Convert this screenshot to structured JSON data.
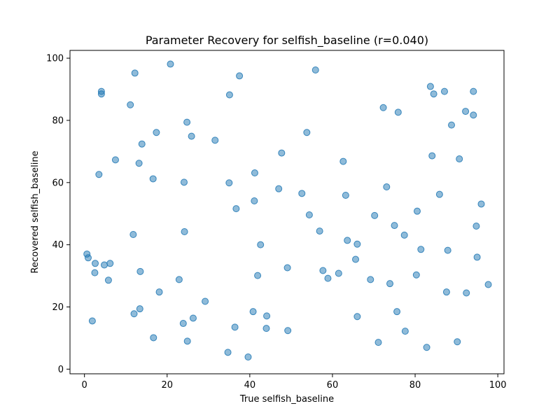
{
  "chart_data": {
    "type": "scatter",
    "title": "Parameter Recovery for selfish_baseline (r=0.040)",
    "xlabel": "True selfish_baseline",
    "ylabel": "Recovered selfish_baseline",
    "xlim": [
      -3.5,
      101.5
    ],
    "ylim": [
      -1.5,
      102.5
    ],
    "xticks": [
      0,
      20,
      40,
      60,
      80,
      100
    ],
    "yticks": [
      0,
      20,
      40,
      60,
      80,
      100
    ],
    "grid": false,
    "point_color": "#1f77b4",
    "point_alpha": 0.5,
    "points": [
      [
        0.6,
        37.0
      ],
      [
        0.9,
        35.8
      ],
      [
        1.9,
        15.5
      ],
      [
        2.5,
        31.0
      ],
      [
        2.6,
        34.0
      ],
      [
        3.5,
        62.6
      ],
      [
        4.1,
        89.3
      ],
      [
        4.1,
        88.5
      ],
      [
        4.8,
        33.5
      ],
      [
        5.8,
        28.6
      ],
      [
        6.2,
        34.0
      ],
      [
        7.5,
        67.3
      ],
      [
        11.1,
        85.0
      ],
      [
        11.8,
        43.3
      ],
      [
        12.2,
        95.2
      ],
      [
        12.0,
        17.8
      ],
      [
        13.2,
        66.2
      ],
      [
        13.4,
        19.4
      ],
      [
        13.5,
        31.4
      ],
      [
        13.9,
        72.4
      ],
      [
        16.6,
        61.2
      ],
      [
        16.7,
        10.1
      ],
      [
        17.4,
        76.1
      ],
      [
        18.1,
        24.8
      ],
      [
        20.8,
        98.1
      ],
      [
        22.9,
        28.8
      ],
      [
        23.9,
        14.7
      ],
      [
        24.1,
        60.1
      ],
      [
        24.2,
        44.2
      ],
      [
        24.8,
        79.4
      ],
      [
        24.9,
        9.0
      ],
      [
        25.9,
        74.9
      ],
      [
        26.3,
        16.4
      ],
      [
        29.2,
        21.8
      ],
      [
        31.6,
        73.6
      ],
      [
        34.7,
        5.4
      ],
      [
        35.0,
        59.9
      ],
      [
        35.1,
        88.2
      ],
      [
        36.4,
        13.5
      ],
      [
        36.7,
        51.6
      ],
      [
        37.5,
        94.3
      ],
      [
        39.6,
        3.9
      ],
      [
        40.8,
        18.5
      ],
      [
        41.1,
        54.1
      ],
      [
        41.2,
        63.1
      ],
      [
        41.9,
        30.1
      ],
      [
        42.6,
        40.0
      ],
      [
        44.0,
        13.1
      ],
      [
        44.1,
        17.1
      ],
      [
        47.0,
        58.0
      ],
      [
        47.7,
        69.5
      ],
      [
        49.1,
        32.6
      ],
      [
        49.2,
        12.4
      ],
      [
        52.6,
        56.5
      ],
      [
        53.8,
        76.1
      ],
      [
        54.4,
        49.6
      ],
      [
        55.9,
        96.2
      ],
      [
        56.9,
        44.4
      ],
      [
        57.7,
        31.7
      ],
      [
        58.9,
        29.2
      ],
      [
        61.5,
        30.8
      ],
      [
        62.6,
        66.8
      ],
      [
        63.2,
        55.9
      ],
      [
        63.6,
        41.4
      ],
      [
        65.6,
        35.3
      ],
      [
        66.0,
        40.2
      ],
      [
        66.0,
        16.9
      ],
      [
        69.2,
        28.8
      ],
      [
        70.2,
        49.4
      ],
      [
        71.1,
        8.6
      ],
      [
        72.3,
        84.1
      ],
      [
        73.1,
        58.6
      ],
      [
        73.9,
        27.5
      ],
      [
        75.0,
        46.2
      ],
      [
        75.6,
        18.5
      ],
      [
        75.9,
        82.6
      ],
      [
        77.4,
        43.1
      ],
      [
        77.6,
        12.2
      ],
      [
        80.3,
        30.3
      ],
      [
        80.5,
        50.8
      ],
      [
        81.4,
        38.5
      ],
      [
        82.8,
        7.0
      ],
      [
        83.7,
        90.9
      ],
      [
        84.1,
        68.6
      ],
      [
        84.5,
        88.5
      ],
      [
        85.9,
        56.2
      ],
      [
        87.1,
        89.3
      ],
      [
        87.6,
        24.8
      ],
      [
        87.9,
        38.2
      ],
      [
        88.8,
        78.5
      ],
      [
        90.2,
        8.8
      ],
      [
        90.7,
        67.6
      ],
      [
        92.2,
        82.9
      ],
      [
        92.4,
        24.5
      ],
      [
        94.1,
        81.7
      ],
      [
        94.1,
        89.3
      ],
      [
        94.8,
        46.0
      ],
      [
        95.0,
        36.0
      ],
      [
        96.0,
        53.1
      ],
      [
        97.7,
        27.2
      ]
    ]
  }
}
